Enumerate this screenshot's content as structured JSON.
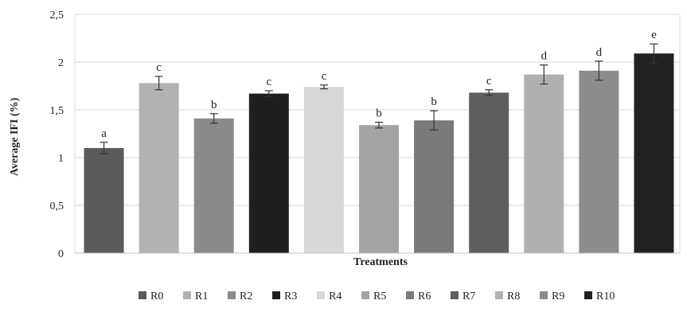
{
  "chart_data": {
    "type": "bar",
    "title": "",
    "xlabel": "Treatments",
    "ylabel": "Average IFI (%)",
    "ylim": [
      0,
      2.5
    ],
    "yticks": [
      "0",
      "0,5",
      "1",
      "1,5",
      "2",
      "2,5"
    ],
    "yticks_values": [
      0,
      0.5,
      1,
      1.5,
      2,
      2.5
    ],
    "grid": true,
    "legend_position": "bottom",
    "categories": [
      "R0",
      "R1",
      "R2",
      "R3",
      "R4",
      "R5",
      "R6",
      "R7",
      "R8",
      "R9",
      "R10"
    ],
    "values": [
      1.1,
      1.78,
      1.41,
      1.67,
      1.74,
      1.34,
      1.39,
      1.68,
      1.87,
      1.91,
      2.09
    ],
    "errors": [
      0.06,
      0.07,
      0.05,
      0.03,
      0.02,
      0.03,
      0.1,
      0.03,
      0.1,
      0.1,
      0.1
    ],
    "significance": [
      "a",
      "c",
      "b",
      "c",
      "c",
      "b",
      "b",
      "c",
      "d",
      "d",
      "e"
    ],
    "colors": [
      "#5a5a5a",
      "#b2b2b2",
      "#8a8a8a",
      "#1f1f1f",
      "#d8d8d8",
      "#a4a4a4",
      "#7a7a7a",
      "#5e5e5e",
      "#b0b0b0",
      "#8c8c8c",
      "#222222"
    ]
  }
}
